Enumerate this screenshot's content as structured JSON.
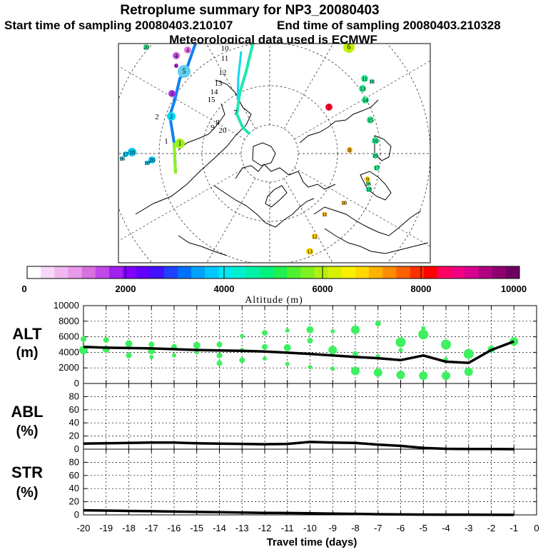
{
  "header": {
    "title": "Retroplume summary for NP3_20080403",
    "start_label": "Start time of sampling 20080403.210107",
    "end_label": "End time of sampling 20080403.210328",
    "met_label": "Meteorological data used is ECMWF"
  },
  "colorbar": {
    "tick_labels": [
      "0",
      "2000",
      "4000",
      "6000",
      "8000",
      "10000"
    ],
    "title": "Altitude (m)",
    "colors": [
      "#ffffff",
      "#f8d8f8",
      "#f0b8f0",
      "#e898e8",
      "#d870e0",
      "#c048e8",
      "#a020f0",
      "#8000ff",
      "#6000ff",
      "#4010ff",
      "#2040ff",
      "#0070ff",
      "#00a0ff",
      "#00c8ff",
      "#00e8f0",
      "#00f0d0",
      "#00f0a8",
      "#00f080",
      "#20f050",
      "#50f030",
      "#80f020",
      "#b0f010",
      "#d8f000",
      "#f8f000",
      "#ffd800",
      "#ffb000",
      "#ff8c00",
      "#ff6000",
      "#ff3000",
      "#ff0000",
      "#ff0060",
      "#f00080",
      "#d80090",
      "#b00080",
      "#900070",
      "#700060"
    ]
  },
  "map": {
    "markers": [
      {
        "label": "4",
        "color": "#e070e8"
      },
      {
        "label": "4",
        "color": "#c050e0"
      },
      {
        "label": "6",
        "color": "#b030e8"
      },
      {
        "label": "5",
        "color": "#60d0f0"
      },
      {
        "label": "3",
        "color": "#b030e8"
      },
      {
        "label": "2",
        "color": "#00d8f0"
      },
      {
        "label": "1",
        "color": "#a0f020"
      },
      {
        "label": "10",
        "color": "#ffffff"
      },
      {
        "label": "11",
        "color": "#ffffff"
      },
      {
        "label": "12",
        "color": "#ffffff"
      },
      {
        "label": "13",
        "color": "#ffffff"
      },
      {
        "label": "14",
        "color": "#ffffff"
      },
      {
        "label": "15",
        "color": "#ffffff"
      },
      {
        "label": "7",
        "color": "#ffffff"
      },
      {
        "label": "8",
        "color": "#ffffff"
      },
      {
        "label": "9",
        "color": "#ffffff"
      },
      {
        "label": "20",
        "color": "#ffffff"
      },
      {
        "label": "2",
        "color": "#ffffff"
      },
      {
        "label": "1",
        "color": "#ffffff"
      },
      {
        "label": "6",
        "color": "#c0f000"
      },
      {
        "label": "11",
        "color": "#30e890"
      },
      {
        "label": "13",
        "color": "#30e890"
      },
      {
        "label": "18",
        "color": "#30e890"
      },
      {
        "label": "14",
        "color": "#30e890"
      },
      {
        "label": "15",
        "color": "#30e890"
      },
      {
        "label": "16",
        "color": "#30e890"
      },
      {
        "label": "19",
        "color": "#30e890"
      },
      {
        "label": "17",
        "color": "#30e890"
      },
      {
        "label": "18",
        "color": "#30e890"
      },
      {
        "label": "16",
        "color": "#30e890"
      },
      {
        "label": "7",
        "color": "#ff0030"
      },
      {
        "label": "8",
        "color": "#ffb000"
      },
      {
        "label": "9",
        "color": "#ffd800"
      },
      {
        "label": "10",
        "color": "#ffb000"
      },
      {
        "label": "11",
        "color": "#ffb000"
      },
      {
        "label": "12",
        "color": "#ffd000"
      },
      {
        "label": "13",
        "color": "#ffd800"
      },
      {
        "label": "18",
        "color": "#00c8f0"
      },
      {
        "label": "17",
        "color": "#00c8f0"
      },
      {
        "label": "16",
        "color": "#00c8f0"
      },
      {
        "label": "20",
        "color": "#00c8f0"
      },
      {
        "label": "19",
        "color": "#00c8f0"
      },
      {
        "label": "20",
        "color": "#30e890"
      }
    ]
  },
  "chart_data": [
    {
      "type": "line",
      "title": "ALT (m)",
      "ylabel_line1": "ALT",
      "ylabel_line2": "(m)",
      "ylim": [
        0,
        10000
      ],
      "yticks": [
        "0",
        "2000",
        "4000",
        "6000",
        "8000",
        "10000"
      ],
      "xlim": [
        -20,
        0
      ],
      "x": [
        -20,
        -19,
        -18,
        -17,
        -16,
        -15,
        -14,
        -13,
        -12,
        -11,
        -10,
        -9,
        -8,
        -7,
        -6,
        -5,
        -4,
        -3,
        -2,
        -1
      ],
      "mean_altitude": [
        4700,
        4600,
        4550,
        4500,
        4400,
        4300,
        4250,
        4200,
        4100,
        3950,
        3800,
        3600,
        3400,
        3250,
        3000,
        3600,
        2800,
        2650,
        4300,
        5400
      ],
      "cluster_points": [
        {
          "x": -20,
          "y": 4300
        },
        {
          "x": -20,
          "y": 5700
        },
        {
          "x": -19,
          "y": 4400
        },
        {
          "x": -19,
          "y": 5600
        },
        {
          "x": -18,
          "y": 5100
        },
        {
          "x": -18,
          "y": 3600
        },
        {
          "x": -17,
          "y": 5000
        },
        {
          "x": -17,
          "y": 4200
        },
        {
          "x": -17,
          "y": 3400
        },
        {
          "x": -16,
          "y": 4700
        },
        {
          "x": -16,
          "y": 3600
        },
        {
          "x": -15,
          "y": 4900
        },
        {
          "x": -15,
          "y": 4000
        },
        {
          "x": -14,
          "y": 5000
        },
        {
          "x": -14,
          "y": 3600
        },
        {
          "x": -14,
          "y": 2600
        },
        {
          "x": -13,
          "y": 6100
        },
        {
          "x": -13,
          "y": 4300
        },
        {
          "x": -13,
          "y": 3000
        },
        {
          "x": -12,
          "y": 6500
        },
        {
          "x": -12,
          "y": 4700
        },
        {
          "x": -12,
          "y": 3200
        },
        {
          "x": -11,
          "y": 6800
        },
        {
          "x": -11,
          "y": 4600
        },
        {
          "x": -11,
          "y": 2500
        },
        {
          "x": -10,
          "y": 6900
        },
        {
          "x": -10,
          "y": 5500
        },
        {
          "x": -10,
          "y": 2100
        },
        {
          "x": -9,
          "y": 6700
        },
        {
          "x": -9,
          "y": 4300
        },
        {
          "x": -9,
          "y": 1900
        },
        {
          "x": -8,
          "y": 6900
        },
        {
          "x": -8,
          "y": 3800
        },
        {
          "x": -8,
          "y": 1600
        },
        {
          "x": -7,
          "y": 7700
        },
        {
          "x": -7,
          "y": 3500
        },
        {
          "x": -7,
          "y": 1400
        },
        {
          "x": -6,
          "y": 5300
        },
        {
          "x": -6,
          "y": 4300
        },
        {
          "x": -6,
          "y": 1100
        },
        {
          "x": -5,
          "y": 7100
        },
        {
          "x": -5,
          "y": 6300
        },
        {
          "x": -5,
          "y": 1000
        },
        {
          "x": -4,
          "y": 5000
        },
        {
          "x": -4,
          "y": 3100
        },
        {
          "x": -4,
          "y": 1000
        },
        {
          "x": -3,
          "y": 3800
        },
        {
          "x": -3,
          "y": 1500
        },
        {
          "x": -2,
          "y": 4400
        },
        {
          "x": -1,
          "y": 5400
        }
      ]
    },
    {
      "type": "line",
      "title": "ABL (%)",
      "ylabel_line1": "ABL",
      "ylabel_line2": "(%)",
      "ylim": [
        0,
        100
      ],
      "yticks": [
        "0",
        "20",
        "40",
        "60",
        "80"
      ],
      "xlim": [
        -20,
        0
      ],
      "x": [
        -20,
        -19,
        -18,
        -17,
        -16,
        -15,
        -14,
        -13,
        -12,
        -11,
        -10,
        -9,
        -8,
        -7,
        -6,
        -5,
        -4,
        -3,
        -2,
        -1
      ],
      "values": [
        8.5,
        9,
        9.5,
        10,
        10,
        9,
        8.5,
        8,
        7.5,
        8,
        11,
        10,
        9.5,
        7,
        5,
        2,
        0.5,
        0.3,
        0.2,
        0
      ]
    },
    {
      "type": "line",
      "title": "STR (%)",
      "ylabel_line1": "STR",
      "ylabel_line2": "(%)",
      "ylim": [
        0,
        100
      ],
      "yticks": [
        "0",
        "20",
        "40",
        "60",
        "80"
      ],
      "xlim": [
        -20,
        0
      ],
      "x": [
        -20,
        -19,
        -18,
        -17,
        -16,
        -15,
        -14,
        -13,
        -12,
        -11,
        -10,
        -9,
        -8,
        -7,
        -6,
        -5,
        -4,
        -3,
        -2,
        -1
      ],
      "values": [
        7,
        6.5,
        6,
        5.5,
        5,
        4.5,
        4,
        3.5,
        3,
        2.8,
        2.5,
        2,
        1.5,
        1,
        0.7,
        0.4,
        0.3,
        0.2,
        0.1,
        0
      ],
      "xticks": [
        "-20",
        "-19",
        "-18",
        "-17",
        "-16",
        "-15",
        "-14",
        "-13",
        "-12",
        "-11",
        "-10",
        "-9",
        "-8",
        "-7",
        "-6",
        "-5",
        "-4",
        "-3",
        "-2",
        "-1",
        "0"
      ],
      "xlabel": "Travel time (days)"
    }
  ]
}
